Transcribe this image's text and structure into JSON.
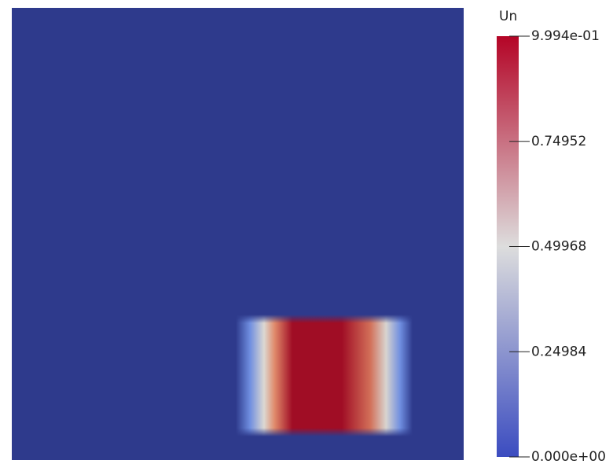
{
  "chart_data": {
    "type": "colorbar",
    "title": "Un",
    "clim": [
      0,
      0.9994
    ],
    "ticks": [
      {
        "value": 0,
        "label": "0.000e+00"
      },
      0.24984,
      0.49968,
      0.74952,
      {
        "value": 0.9994,
        "label": "9.994e-01"
      }
    ],
    "colormap": [
      "#3b4cc0",
      "#dddddd",
      "#b40426"
    ]
  }
}
